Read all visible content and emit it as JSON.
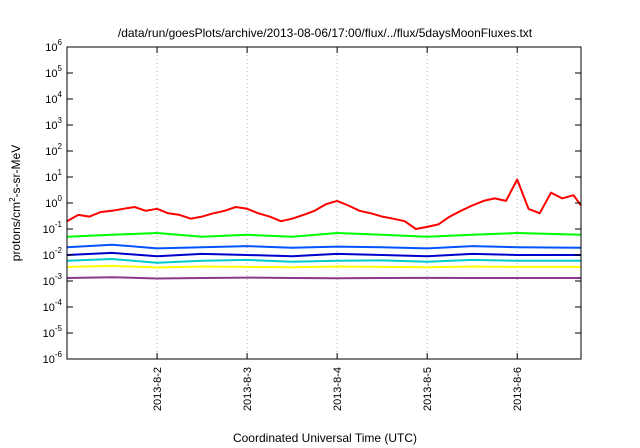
{
  "chart_data": {
    "type": "line",
    "title": "/data/run/goesPlots/archive/2013-08-06/17:00/flux/../flux/5daysMoonFluxes.txt",
    "xlabel": "Coordinated Universal Time (UTC)",
    "ylabel": {
      "prefix": "protons/cm",
      "superscript": "2",
      "suffix": "-s-sr-MeV"
    },
    "y_scale": "log",
    "ylim": [
      1e-06,
      1000000.0
    ],
    "y_ticks": [
      {
        "value": 1e-06,
        "base": "10",
        "exp": "-6"
      },
      {
        "value": 1e-05,
        "base": "10",
        "exp": "-5"
      },
      {
        "value": 0.0001,
        "base": "10",
        "exp": "-4"
      },
      {
        "value": 0.001,
        "base": "10",
        "exp": "-3"
      },
      {
        "value": 0.01,
        "base": "10",
        "exp": "-2"
      },
      {
        "value": 0.1,
        "base": "10",
        "exp": "-1"
      },
      {
        "value": 1,
        "base": "10",
        "exp": "0"
      },
      {
        "value": 10,
        "base": "10",
        "exp": "1"
      },
      {
        "value": 100,
        "base": "10",
        "exp": "2"
      },
      {
        "value": 1000,
        "base": "10",
        "exp": "3"
      },
      {
        "value": 10000,
        "base": "10",
        "exp": "4"
      },
      {
        "value": 100000,
        "base": "10",
        "exp": "5"
      },
      {
        "value": 1000000,
        "base": "10",
        "exp": "6"
      }
    ],
    "xlim": [
      "2013-08-01T00:00",
      "2013-08-06T17:00"
    ],
    "x_ticks": [
      {
        "value": "2013-08-02T00:00",
        "label": "2013-8-2"
      },
      {
        "value": "2013-08-03T00:00",
        "label": "2013-8-3"
      },
      {
        "value": "2013-08-04T00:00",
        "label": "2013-8-4"
      },
      {
        "value": "2013-08-05T00:00",
        "label": "2013-8-5"
      },
      {
        "value": "2013-08-06T00:00",
        "label": "2013-8-6"
      }
    ],
    "grid": true,
    "legend": "none",
    "series": [
      {
        "color": "#ff0000",
        "points": [
          [
            "2013-08-01T00:00",
            0.2
          ],
          [
            "2013-08-01T03:00",
            0.35
          ],
          [
            "2013-08-01T06:00",
            0.3
          ],
          [
            "2013-08-01T09:00",
            0.45
          ],
          [
            "2013-08-01T12:00",
            0.5
          ],
          [
            "2013-08-01T15:00",
            0.6
          ],
          [
            "2013-08-01T18:00",
            0.7
          ],
          [
            "2013-08-01T21:00",
            0.5
          ],
          [
            "2013-08-02T00:00",
            0.6
          ],
          [
            "2013-08-02T03:00",
            0.4
          ],
          [
            "2013-08-02T06:00",
            0.35
          ],
          [
            "2013-08-02T09:00",
            0.25
          ],
          [
            "2013-08-02T12:00",
            0.3
          ],
          [
            "2013-08-02T15:00",
            0.4
          ],
          [
            "2013-08-02T18:00",
            0.5
          ],
          [
            "2013-08-02T21:00",
            0.7
          ],
          [
            "2013-08-03T00:00",
            0.6
          ],
          [
            "2013-08-03T03:00",
            0.4
          ],
          [
            "2013-08-03T06:00",
            0.3
          ],
          [
            "2013-08-03T09:00",
            0.2
          ],
          [
            "2013-08-03T12:00",
            0.25
          ],
          [
            "2013-08-03T15:00",
            0.35
          ],
          [
            "2013-08-03T18:00",
            0.5
          ],
          [
            "2013-08-03T21:00",
            0.9
          ],
          [
            "2013-08-04T00:00",
            1.2
          ],
          [
            "2013-08-04T03:00",
            0.8
          ],
          [
            "2013-08-04T06:00",
            0.5
          ],
          [
            "2013-08-04T09:00",
            0.4
          ],
          [
            "2013-08-04T12:00",
            0.3
          ],
          [
            "2013-08-04T15:00",
            0.25
          ],
          [
            "2013-08-04T18:00",
            0.2
          ],
          [
            "2013-08-04T21:00",
            0.1
          ],
          [
            "2013-08-05T00:00",
            0.12
          ],
          [
            "2013-08-05T03:00",
            0.15
          ],
          [
            "2013-08-05T06:00",
            0.3
          ],
          [
            "2013-08-05T09:00",
            0.5
          ],
          [
            "2013-08-05T12:00",
            0.8
          ],
          [
            "2013-08-05T15:00",
            1.2
          ],
          [
            "2013-08-05T18:00",
            1.5
          ],
          [
            "2013-08-05T21:00",
            1.2
          ],
          [
            "2013-08-06T00:00",
            8.0
          ],
          [
            "2013-08-06T03:00",
            0.6
          ],
          [
            "2013-08-06T06:00",
            0.4
          ],
          [
            "2013-08-06T09:00",
            2.5
          ],
          [
            "2013-08-06T12:00",
            1.5
          ],
          [
            "2013-08-06T15:00",
            2.0
          ],
          [
            "2013-08-06T17:00",
            0.8
          ]
        ]
      },
      {
        "color": "#00ff00",
        "points": [
          [
            "2013-08-01T00:00",
            0.05
          ],
          [
            "2013-08-01T12:00",
            0.06
          ],
          [
            "2013-08-02T00:00",
            0.07
          ],
          [
            "2013-08-02T12:00",
            0.05
          ],
          [
            "2013-08-03T00:00",
            0.06
          ],
          [
            "2013-08-03T12:00",
            0.05
          ],
          [
            "2013-08-04T00:00",
            0.07
          ],
          [
            "2013-08-04T12:00",
            0.06
          ],
          [
            "2013-08-05T00:00",
            0.05
          ],
          [
            "2013-08-05T12:00",
            0.06
          ],
          [
            "2013-08-06T00:00",
            0.07
          ],
          [
            "2013-08-06T17:00",
            0.06
          ]
        ]
      },
      {
        "color": "#0055ff",
        "points": [
          [
            "2013-08-01T00:00",
            0.02
          ],
          [
            "2013-08-01T12:00",
            0.025
          ],
          [
            "2013-08-02T00:00",
            0.018
          ],
          [
            "2013-08-02T12:00",
            0.02
          ],
          [
            "2013-08-03T00:00",
            0.022
          ],
          [
            "2013-08-03T12:00",
            0.019
          ],
          [
            "2013-08-04T00:00",
            0.021
          ],
          [
            "2013-08-04T12:00",
            0.02
          ],
          [
            "2013-08-05T00:00",
            0.018
          ],
          [
            "2013-08-05T12:00",
            0.022
          ],
          [
            "2013-08-06T00:00",
            0.02
          ],
          [
            "2013-08-06T17:00",
            0.019
          ]
        ]
      },
      {
        "color": "#0000cc",
        "points": [
          [
            "2013-08-01T00:00",
            0.01
          ],
          [
            "2013-08-01T12:00",
            0.012
          ],
          [
            "2013-08-02T00:00",
            0.009
          ],
          [
            "2013-08-02T12:00",
            0.011
          ],
          [
            "2013-08-03T00:00",
            0.01
          ],
          [
            "2013-08-03T12:00",
            0.009
          ],
          [
            "2013-08-04T00:00",
            0.011
          ],
          [
            "2013-08-04T12:00",
            0.01
          ],
          [
            "2013-08-05T00:00",
            0.009
          ],
          [
            "2013-08-05T12:00",
            0.011
          ],
          [
            "2013-08-06T00:00",
            0.01
          ],
          [
            "2013-08-06T17:00",
            0.01
          ]
        ]
      },
      {
        "color": "#00cccc",
        "points": [
          [
            "2013-08-01T00:00",
            0.006
          ],
          [
            "2013-08-01T12:00",
            0.007
          ],
          [
            "2013-08-02T00:00",
            0.005
          ],
          [
            "2013-08-02T12:00",
            0.006
          ],
          [
            "2013-08-03T00:00",
            0.0065
          ],
          [
            "2013-08-03T12:00",
            0.0055
          ],
          [
            "2013-08-04T00:00",
            0.006
          ],
          [
            "2013-08-04T12:00",
            0.0062
          ],
          [
            "2013-08-05T00:00",
            0.0055
          ],
          [
            "2013-08-05T12:00",
            0.0065
          ],
          [
            "2013-08-06T00:00",
            0.006
          ],
          [
            "2013-08-06T17:00",
            0.006
          ]
        ]
      },
      {
        "color": "#ffff00",
        "points": [
          [
            "2013-08-01T00:00",
            0.0035
          ],
          [
            "2013-08-01T12:00",
            0.0038
          ],
          [
            "2013-08-02T00:00",
            0.0033
          ],
          [
            "2013-08-02T12:00",
            0.0036
          ],
          [
            "2013-08-03T00:00",
            0.0035
          ],
          [
            "2013-08-03T12:00",
            0.0034
          ],
          [
            "2013-08-04T00:00",
            0.0036
          ],
          [
            "2013-08-04T12:00",
            0.0035
          ],
          [
            "2013-08-05T00:00",
            0.0034
          ],
          [
            "2013-08-05T12:00",
            0.0036
          ],
          [
            "2013-08-06T00:00",
            0.0035
          ],
          [
            "2013-08-06T17:00",
            0.0035
          ]
        ]
      },
      {
        "color": "#8b3a8b",
        "points": [
          [
            "2013-08-01T00:00",
            0.0013
          ],
          [
            "2013-08-01T12:00",
            0.0014
          ],
          [
            "2013-08-02T00:00",
            0.00125
          ],
          [
            "2013-08-02T12:00",
            0.0013
          ],
          [
            "2013-08-03T00:00",
            0.00135
          ],
          [
            "2013-08-03T12:00",
            0.0013
          ],
          [
            "2013-08-04T00:00",
            0.00128
          ],
          [
            "2013-08-04T12:00",
            0.0013
          ],
          [
            "2013-08-05T00:00",
            0.00132
          ],
          [
            "2013-08-05T12:00",
            0.0013
          ],
          [
            "2013-08-06T00:00",
            0.0013
          ],
          [
            "2013-08-06T17:00",
            0.0013
          ]
        ]
      }
    ]
  }
}
